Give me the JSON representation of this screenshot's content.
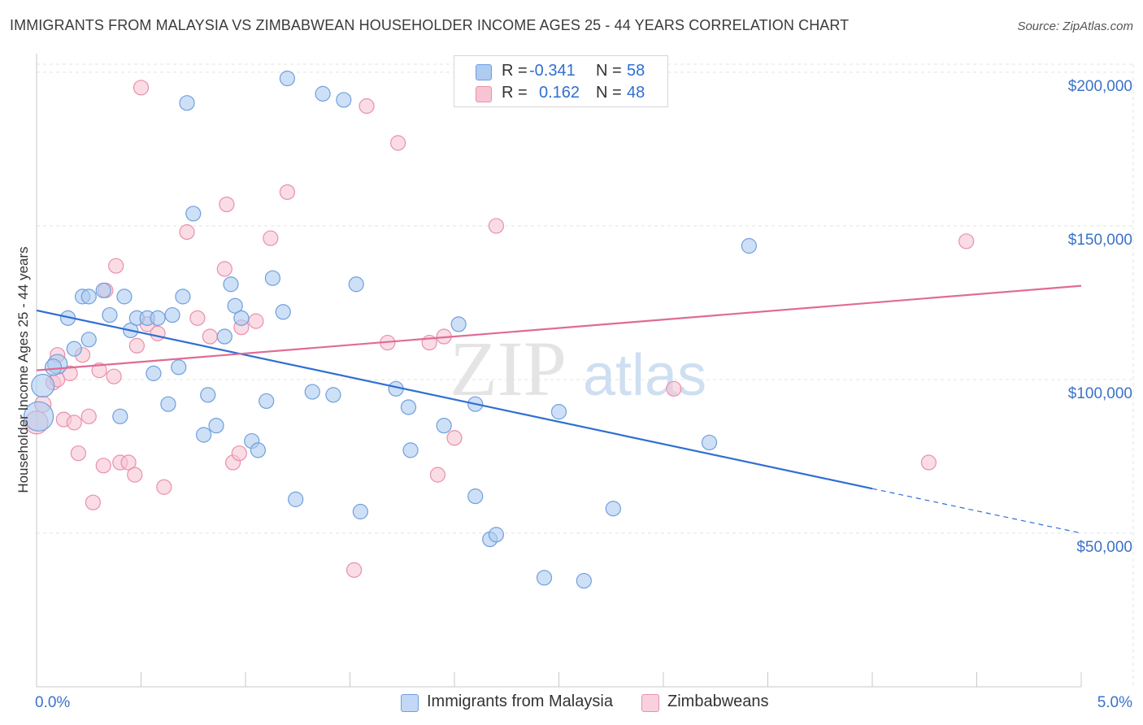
{
  "title": "IMMIGRANTS FROM MALAYSIA VS ZIMBABWEAN HOUSEHOLDER INCOME AGES 25 - 44 YEARS CORRELATION CHART",
  "source": "Source: ZipAtlas.com",
  "watermark": {
    "zip": "ZIP",
    "atlas": "atlas"
  },
  "legend": {
    "rows": [
      {
        "r_label": "R =",
        "r_value": "-0.341",
        "n_label": "N =",
        "n_value": "58"
      },
      {
        "r_label": "R =",
        "r_value": "0.162",
        "n_label": "N =",
        "n_value": "48"
      }
    ]
  },
  "bottom_legend": [
    "Immigrants from Malaysia",
    "Zimbabweans"
  ],
  "colors": {
    "blue_fill": "#aecbf0",
    "blue_stroke": "#6f9fde",
    "blue_line": "#2f6fd1",
    "pink_fill": "#f7c4d4",
    "pink_stroke": "#ea8fac",
    "pink_line": "#e06b93",
    "axis_label": "#3a72c8",
    "grid": "#e3e3e3"
  },
  "chart_data": {
    "type": "scatter",
    "title": "IMMIGRANTS FROM MALAYSIA VS ZIMBABWEAN HOUSEHOLDER INCOME AGES 25 - 44 YEARS CORRELATION CHART",
    "xlabel": "",
    "ylabel": "Householder Income Ages 25 - 44 years",
    "xlim": [
      0,
      5
    ],
    "ylim": [
      0,
      205000
    ],
    "x_tick_labels": [
      "0.0%",
      "5.0%"
    ],
    "y_ticks": [
      {
        "value": 50000,
        "label": "$50,000"
      },
      {
        "value": 100000,
        "label": "$100,000"
      },
      {
        "value": 150000,
        "label": "$150,000"
      },
      {
        "value": 200000,
        "label": "$200,000"
      }
    ],
    "grid": true,
    "series": [
      {
        "name": "Immigrants from Malaysia",
        "color": "blue",
        "r": -0.341,
        "n": 58,
        "trend": {
          "x0": 0.0,
          "y0": 122500,
          "x1": 4.0,
          "y1": 64500,
          "dash_to_x": 5.0,
          "dash_to_y": 50000
        },
        "points": [
          [
            0.01,
            88000,
            18
          ],
          [
            0.03,
            98000,
            14
          ],
          [
            0.1,
            105000,
            12
          ],
          [
            0.08,
            104000,
            10
          ],
          [
            0.15,
            120000,
            9
          ],
          [
            0.18,
            110000,
            9
          ],
          [
            0.22,
            127000,
            9
          ],
          [
            0.25,
            113000,
            9
          ],
          [
            0.25,
            127000,
            9
          ],
          [
            0.32,
            129000,
            9
          ],
          [
            0.35,
            121000,
            9
          ],
          [
            0.4,
            88000,
            9
          ],
          [
            0.42,
            127000,
            9
          ],
          [
            0.45,
            116000,
            9
          ],
          [
            0.48,
            120000,
            9
          ],
          [
            0.53,
            120000,
            9
          ],
          [
            0.56,
            102000,
            9
          ],
          [
            0.58,
            120000,
            9
          ],
          [
            0.63,
            92000,
            9
          ],
          [
            0.65,
            121000,
            9
          ],
          [
            0.68,
            104000,
            9
          ],
          [
            0.7,
            127000,
            9
          ],
          [
            0.72,
            190000,
            9
          ],
          [
            0.75,
            154000,
            9
          ],
          [
            0.8,
            82000,
            9
          ],
          [
            0.82,
            95000,
            9
          ],
          [
            0.86,
            85000,
            9
          ],
          [
            0.9,
            114000,
            9
          ],
          [
            0.93,
            131000,
            9
          ],
          [
            0.95,
            124000,
            9
          ],
          [
            0.98,
            120000,
            9
          ],
          [
            1.03,
            80000,
            9
          ],
          [
            1.06,
            77000,
            9
          ],
          [
            1.1,
            93000,
            9
          ],
          [
            1.13,
            133000,
            9
          ],
          [
            1.18,
            122000,
            9
          ],
          [
            1.2,
            198000,
            9
          ],
          [
            1.24,
            61000,
            9
          ],
          [
            1.32,
            96000,
            9
          ],
          [
            1.37,
            193000,
            9
          ],
          [
            1.42,
            95000,
            9
          ],
          [
            1.47,
            191000,
            9
          ],
          [
            1.53,
            131000,
            9
          ],
          [
            1.55,
            57000,
            9
          ],
          [
            1.72,
            97000,
            9
          ],
          [
            1.78,
            91000,
            9
          ],
          [
            1.79,
            77000,
            9
          ],
          [
            1.95,
            85000,
            9
          ],
          [
            2.02,
            118000,
            9
          ],
          [
            2.1,
            62000,
            9
          ],
          [
            2.1,
            92000,
            9
          ],
          [
            2.17,
            48000,
            9
          ],
          [
            2.2,
            49500,
            9
          ],
          [
            2.43,
            35500,
            9
          ],
          [
            2.5,
            89500,
            9
          ],
          [
            2.62,
            34500,
            9
          ],
          [
            2.76,
            58000,
            9
          ],
          [
            3.22,
            79500,
            9
          ],
          [
            3.41,
            143500,
            9
          ]
        ]
      },
      {
        "name": "Zimbabweans",
        "color": "pink",
        "r": 0.162,
        "n": 48,
        "trend": {
          "x0": 0.0,
          "y0": 103000,
          "x1": 5.0,
          "y1": 130500
        },
        "points": [
          [
            0.0,
            86000,
            14
          ],
          [
            0.03,
            92000,
            10
          ],
          [
            0.08,
            99000,
            9
          ],
          [
            0.1,
            100000,
            9
          ],
          [
            0.1,
            108000,
            9
          ],
          [
            0.13,
            87000,
            9
          ],
          [
            0.16,
            102000,
            9
          ],
          [
            0.18,
            86000,
            9
          ],
          [
            0.2,
            76000,
            9
          ],
          [
            0.22,
            108000,
            9
          ],
          [
            0.25,
            88000,
            9
          ],
          [
            0.27,
            60000,
            9
          ],
          [
            0.3,
            103000,
            9
          ],
          [
            0.32,
            72000,
            9
          ],
          [
            0.33,
            129000,
            9
          ],
          [
            0.37,
            101000,
            9
          ],
          [
            0.38,
            137000,
            9
          ],
          [
            0.4,
            73000,
            9
          ],
          [
            0.44,
            73000,
            9
          ],
          [
            0.47,
            69000,
            9
          ],
          [
            0.48,
            111000,
            9
          ],
          [
            0.5,
            195000,
            9
          ],
          [
            0.53,
            118000,
            9
          ],
          [
            0.58,
            115000,
            9
          ],
          [
            0.61,
            65000,
            9
          ],
          [
            0.72,
            148000,
            9
          ],
          [
            0.77,
            120000,
            9
          ],
          [
            0.83,
            114000,
            9
          ],
          [
            0.9,
            136000,
            9
          ],
          [
            0.91,
            157000,
            9
          ],
          [
            0.94,
            73000,
            9
          ],
          [
            0.97,
            76000,
            9
          ],
          [
            0.98,
            117000,
            9
          ],
          [
            1.05,
            119000,
            9
          ],
          [
            1.12,
            146000,
            9
          ],
          [
            1.2,
            161000,
            9
          ],
          [
            1.52,
            38000,
            9
          ],
          [
            1.58,
            189000,
            9
          ],
          [
            1.68,
            112000,
            9
          ],
          [
            1.73,
            177000,
            9
          ],
          [
            1.88,
            112000,
            9
          ],
          [
            1.92,
            69000,
            9
          ],
          [
            1.95,
            114000,
            9
          ],
          [
            2.0,
            81000,
            9
          ],
          [
            2.2,
            150000,
            9
          ],
          [
            3.05,
            97000,
            9
          ],
          [
            4.27,
            73000,
            9
          ],
          [
            4.45,
            145000,
            9
          ]
        ]
      }
    ]
  }
}
